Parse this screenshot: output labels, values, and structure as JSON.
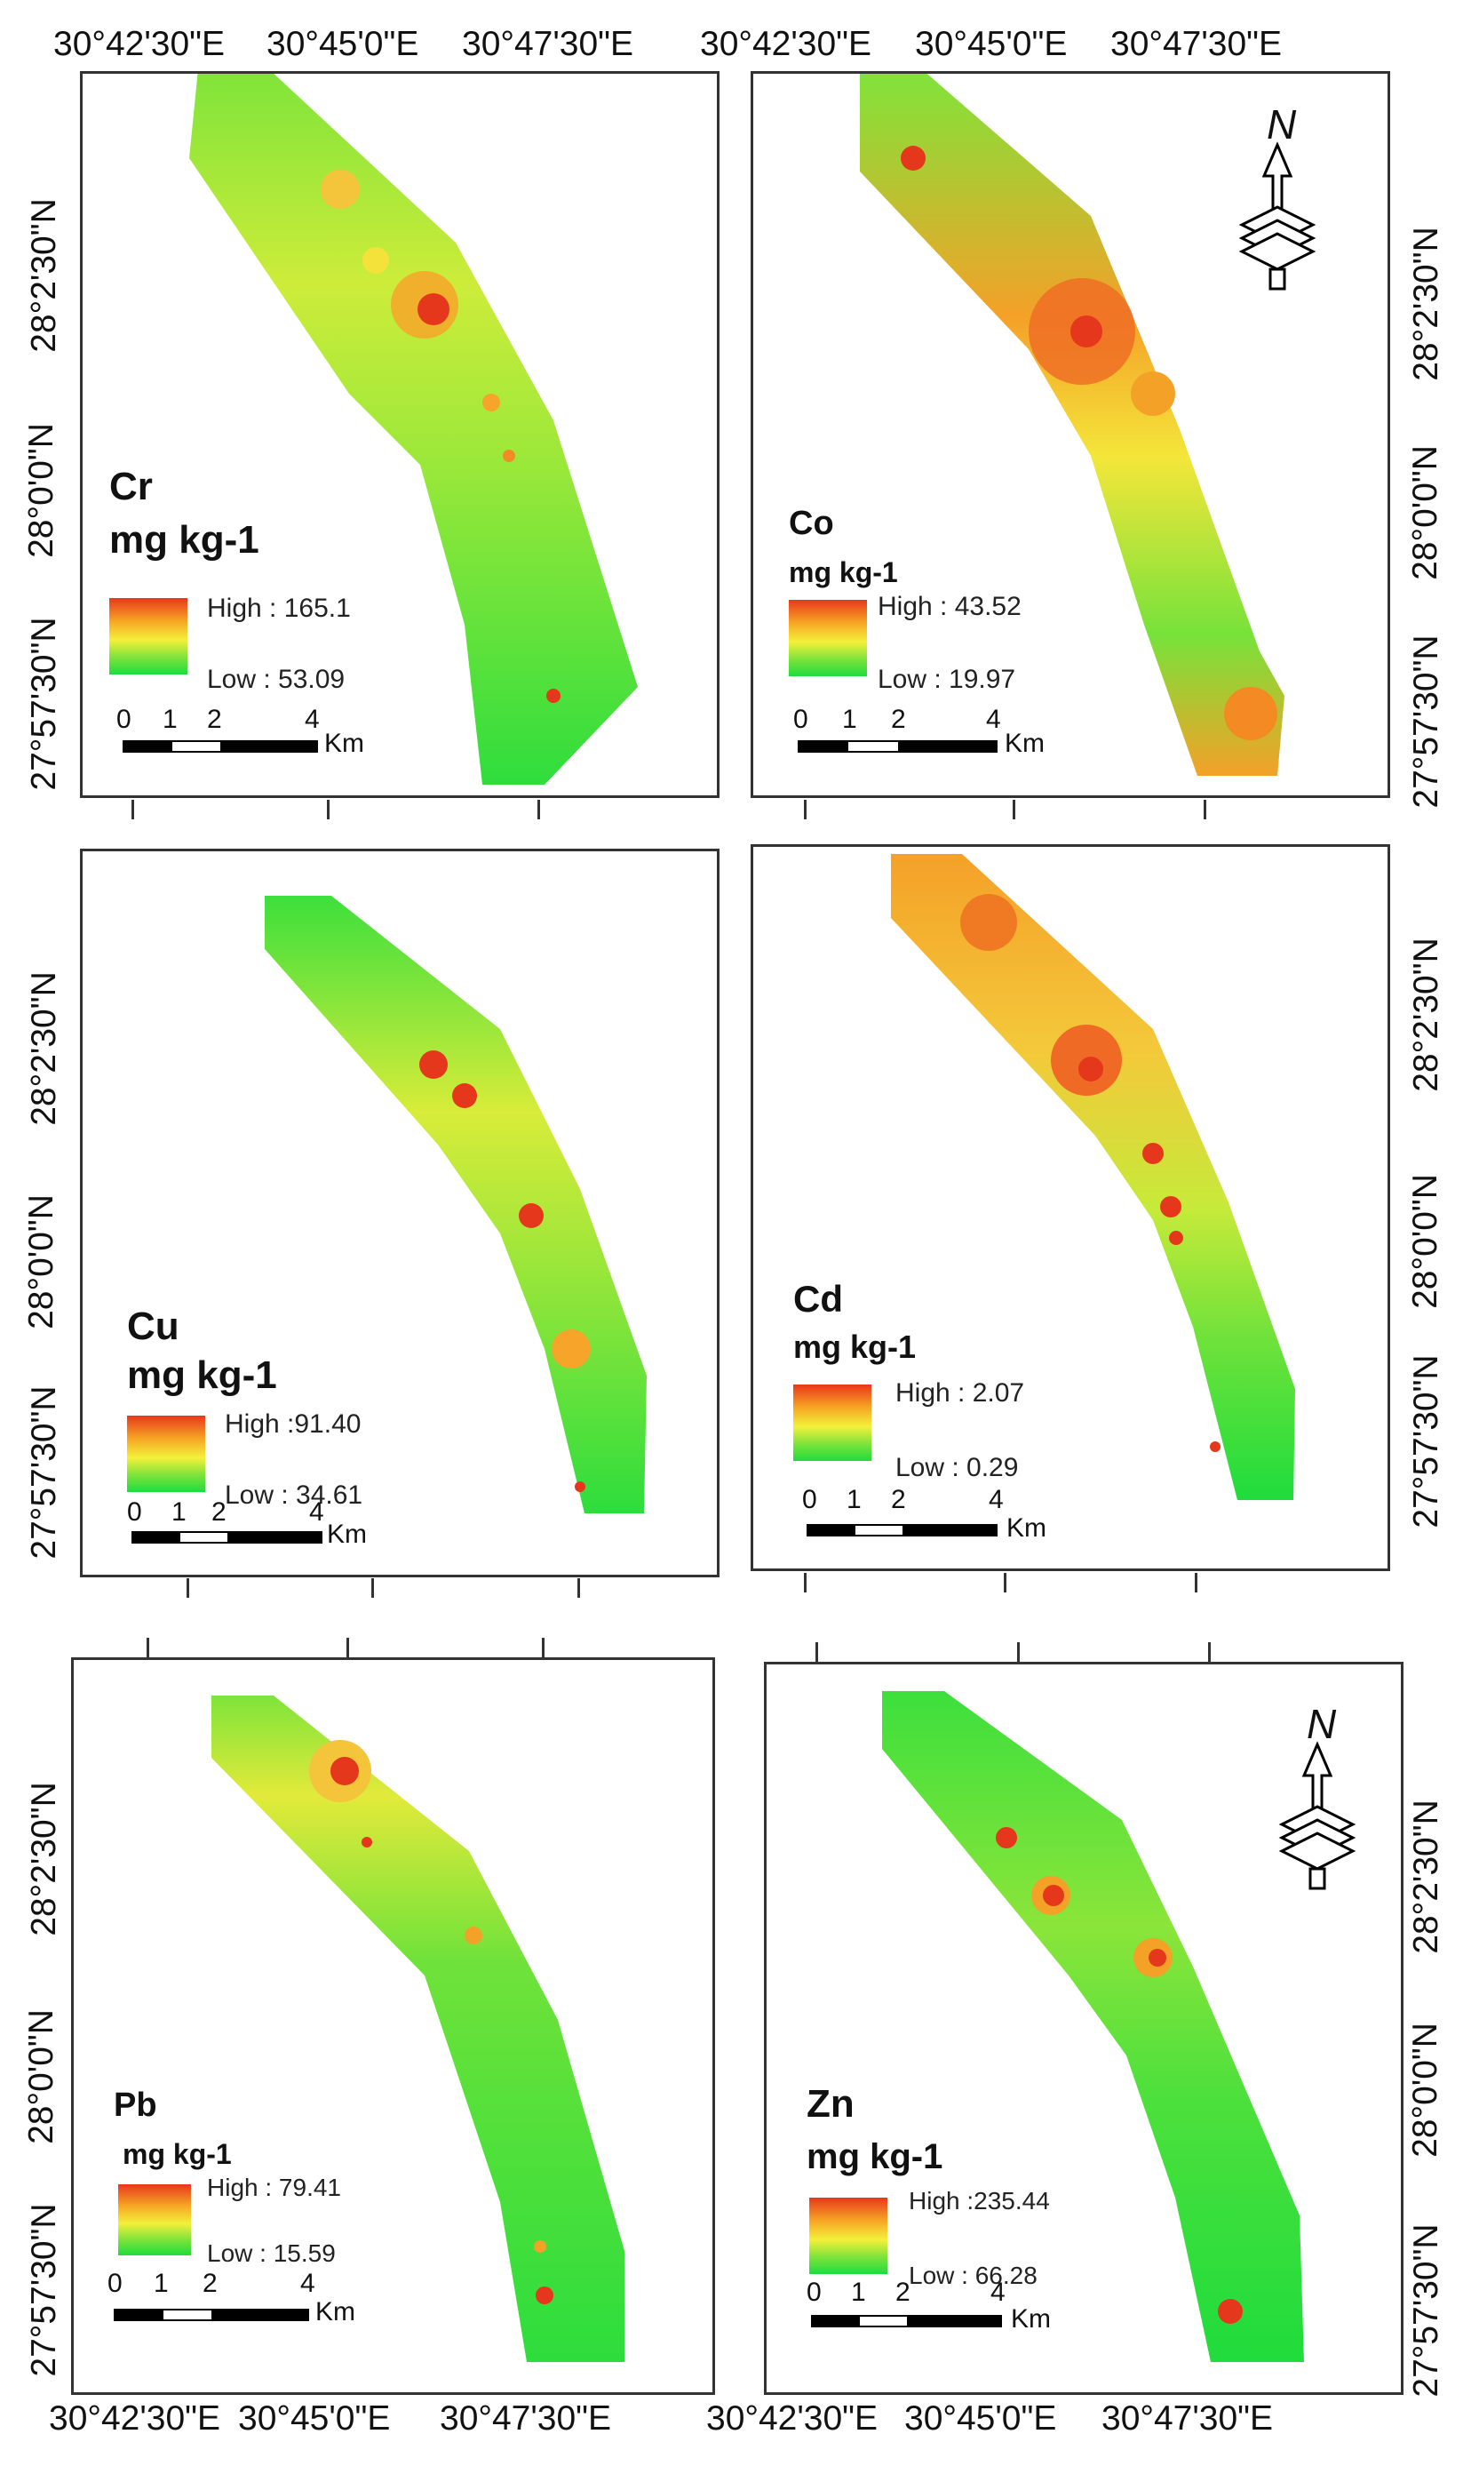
{
  "figure": {
    "top_axis": {
      "lon_labels": [
        "30°42'30\"E",
        "30°45'0\"E",
        "30°47'30\"E",
        "30°42'30\"E",
        "30°45'0\"E",
        "30°47'30\"E"
      ]
    },
    "bottom_axis": {
      "lon_labels": [
        "30°42'30\"E",
        "30°45'0\"E",
        "30°47'30\"E",
        "30°42'30\"E",
        "30°45'0\"E",
        "30°47'30\"E"
      ]
    },
    "lat_labels": [
      "28°2'30\"N",
      "28°0'0\"N",
      "27°57'30\"N"
    ],
    "north_arrow_label": "N",
    "scale": {
      "ticks": [
        "0",
        "1",
        "2",
        "4"
      ],
      "unit": "Km"
    },
    "panels": [
      {
        "element": "Cr",
        "unit": "mg kg-1",
        "high": "High : 165.1",
        "low": "Low : 53.09",
        "high_value": 165.1,
        "low_value": 53.09
      },
      {
        "element": "Co",
        "unit": "mg kg-1",
        "high": "High : 43.52",
        "low": "Low : 19.97",
        "high_value": 43.52,
        "low_value": 19.97
      },
      {
        "element": "Cu",
        "unit": "mg kg-1",
        "high": "High :91.40",
        "low": "Low : 34.61",
        "high_value": 91.4,
        "low_value": 34.61
      },
      {
        "element": "Cd",
        "unit": "mg kg-1",
        "high": "High : 2.07",
        "low": "Low : 0.29",
        "high_value": 2.07,
        "low_value": 0.29
      },
      {
        "element": "Pb",
        "unit": "mg kg-1",
        "high": "High : 79.41",
        "low": "Low : 15.59",
        "high_value": 79.41,
        "low_value": 15.59
      },
      {
        "element": "Zn",
        "unit": "mg kg-1",
        "high": "High :235.44",
        "low": "Low : 66.28",
        "high_value": 235.44,
        "low_value": 66.28
      }
    ],
    "colors": {
      "high": "#e8371c",
      "mid": "#f4f03a",
      "low": "#1fdc3c"
    }
  }
}
